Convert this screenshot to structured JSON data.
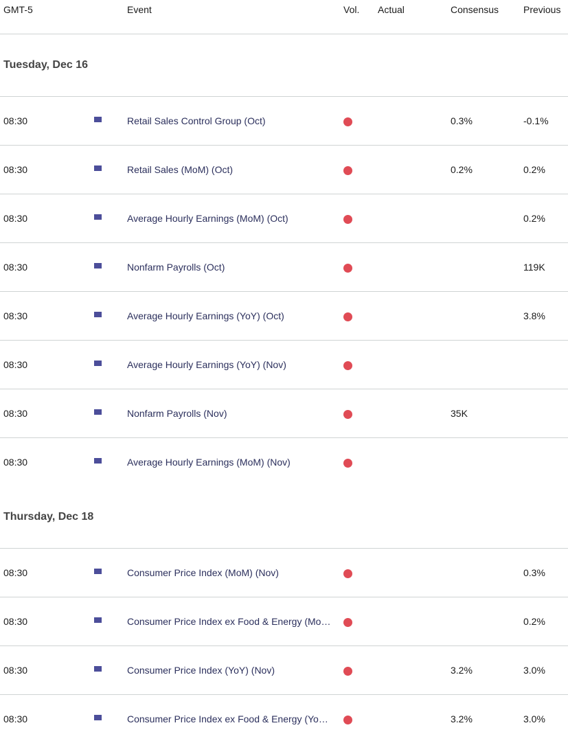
{
  "header": {
    "timezone": "GMT-5",
    "event": "Event",
    "vol": "Vol.",
    "actual": "Actual",
    "consensus": "Consensus",
    "previous": "Previous"
  },
  "colors": {
    "high_volatility": "#e04b55",
    "event_text": "#2b2f5c"
  },
  "sections": [
    {
      "date": "Tuesday, Dec 16",
      "rows": [
        {
          "time": "08:30",
          "country": "US",
          "event": "Retail Sales Control Group (Oct)",
          "actual": "",
          "consensus": "0.3%",
          "previous": "-0.1%"
        },
        {
          "time": "08:30",
          "country": "US",
          "event": "Retail Sales (MoM) (Oct)",
          "actual": "",
          "consensus": "0.2%",
          "previous": "0.2%"
        },
        {
          "time": "08:30",
          "country": "US",
          "event": "Average Hourly Earnings (MoM) (Oct)",
          "actual": "",
          "consensus": "",
          "previous": "0.2%"
        },
        {
          "time": "08:30",
          "country": "US",
          "event": "Nonfarm Payrolls (Oct)",
          "actual": "",
          "consensus": "",
          "previous": "119K"
        },
        {
          "time": "08:30",
          "country": "US",
          "event": "Average Hourly Earnings (YoY) (Oct)",
          "actual": "",
          "consensus": "",
          "previous": "3.8%"
        },
        {
          "time": "08:30",
          "country": "US",
          "event": "Average Hourly Earnings (YoY) (Nov)",
          "actual": "",
          "consensus": "",
          "previous": ""
        },
        {
          "time": "08:30",
          "country": "US",
          "event": "Nonfarm Payrolls (Nov)",
          "actual": "",
          "consensus": "35K",
          "previous": ""
        },
        {
          "time": "08:30",
          "country": "US",
          "event": "Average Hourly Earnings (MoM) (Nov)",
          "actual": "",
          "consensus": "",
          "previous": ""
        }
      ]
    },
    {
      "date": "Thursday, Dec 18",
      "rows": [
        {
          "time": "08:30",
          "country": "US",
          "event": "Consumer Price Index (MoM) (Nov)",
          "actual": "",
          "consensus": "",
          "previous": "0.3%"
        },
        {
          "time": "08:30",
          "country": "US",
          "event": "Consumer Price Index ex Food & Energy (Mo…",
          "actual": "",
          "consensus": "",
          "previous": "0.2%"
        },
        {
          "time": "08:30",
          "country": "US",
          "event": "Consumer Price Index (YoY) (Nov)",
          "actual": "",
          "consensus": "3.2%",
          "previous": "3.0%"
        },
        {
          "time": "08:30",
          "country": "US",
          "event": "Consumer Price Index ex Food & Energy (Yo…",
          "actual": "",
          "consensus": "3.2%",
          "previous": "3.0%"
        }
      ]
    }
  ]
}
